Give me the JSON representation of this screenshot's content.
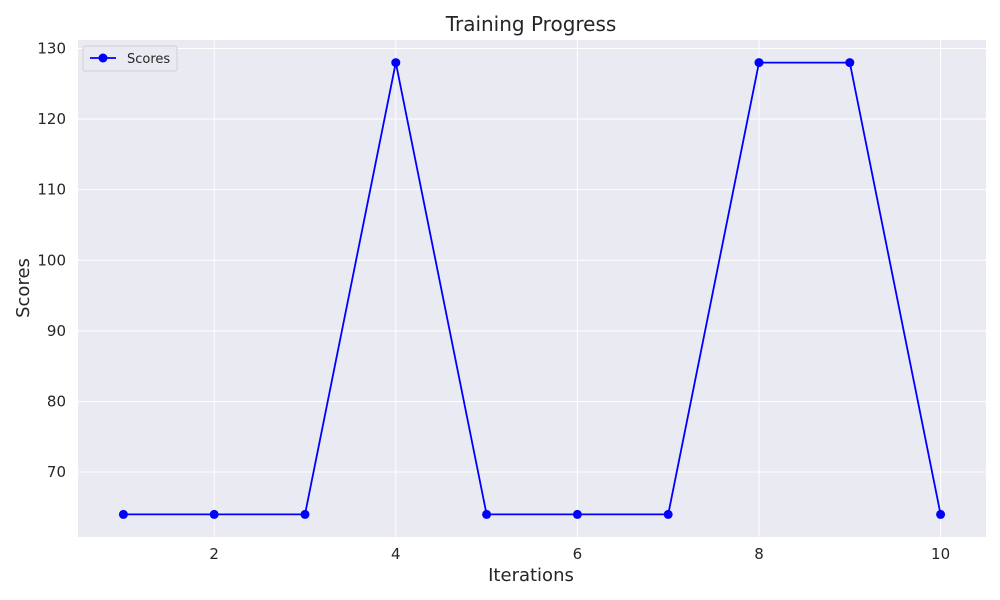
{
  "chart_data": {
    "type": "line",
    "title": "Training Progress",
    "xlabel": "Iterations",
    "ylabel": "Scores",
    "x": [
      1,
      2,
      3,
      4,
      5,
      6,
      7,
      8,
      9,
      10
    ],
    "series": [
      {
        "name": "Scores",
        "values": [
          64,
          64,
          64,
          128,
          64,
          64,
          64,
          128,
          128,
          64
        ],
        "color": "#0000ff",
        "marker": "circle"
      }
    ],
    "xlim": [
      0.5,
      10.5
    ],
    "ylim": [
      60.8,
      131.2
    ],
    "xticks": [
      2,
      4,
      6,
      8,
      10
    ],
    "yticks": [
      70,
      80,
      90,
      100,
      110,
      120,
      130
    ],
    "grid": true,
    "legend_position": "top-left",
    "background_color": "#eaeaf2",
    "grid_color": "#ffffff"
  }
}
